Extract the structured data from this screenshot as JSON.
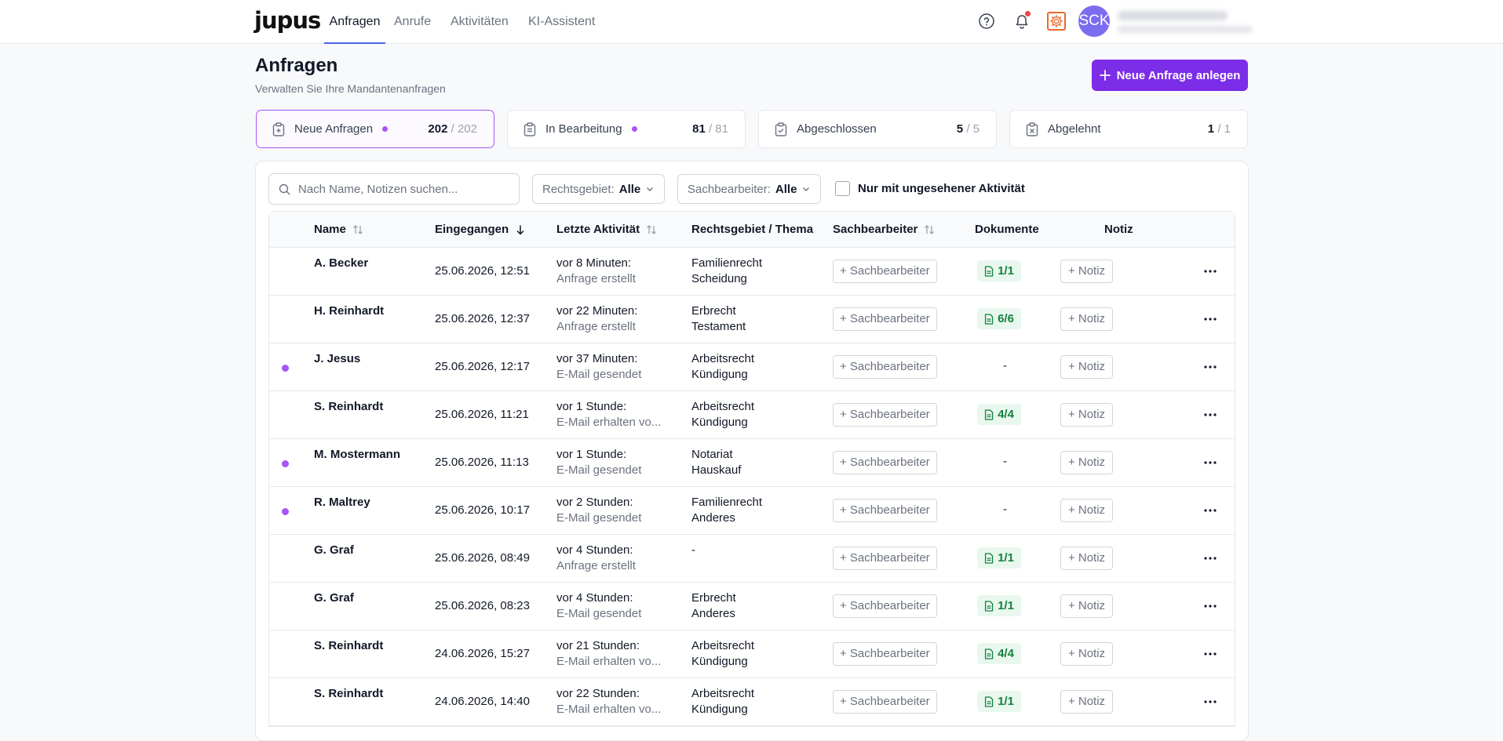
{
  "app": {
    "logo": "jupus"
  },
  "nav": [
    {
      "label": "Anfragen",
      "active": true
    },
    {
      "label": "Anrufe"
    },
    {
      "label": "Aktivitäten"
    },
    {
      "label": "KI-Assistent"
    }
  ],
  "user": {
    "initials": "SCK"
  },
  "colors": {
    "accent": "#7c2de8",
    "purple_dot": "#a855f7",
    "notification": "#ef4444",
    "doc_badge_bg": "#e9f8ef",
    "doc_badge_text": "#15803d"
  },
  "header": {
    "title": "Anfragen",
    "subtitle": "Verwalten Sie Ihre Mandantenanfragen",
    "new_button": "Neue Anfrage anlegen"
  },
  "stats": [
    {
      "label": "Neue Anfragen",
      "count": "202",
      "total": "/ 202",
      "dot": true,
      "active": true
    },
    {
      "label": "In Bearbeitung",
      "count": "81",
      "total": "/ 81",
      "dot": true
    },
    {
      "label": "Abgeschlossen",
      "count": "5",
      "total": "/ 5",
      "dot": false
    },
    {
      "label": "Abgelehnt",
      "count": "1",
      "total": "/ 1",
      "dot": false
    }
  ],
  "filters": {
    "search_placeholder": "Nach Name, Notizen suchen...",
    "rechtsgebiet_label": "Rechtsgebiet:",
    "rechtsgebiet_value": "Alle",
    "sachbearbeiter_label": "Sachbearbeiter:",
    "sachbearbeiter_value": "Alle",
    "unseen_label": "Nur mit ungesehener Aktivität"
  },
  "table": {
    "columns": {
      "name": "Name",
      "eingegangen": "Eingegangen",
      "letzte_aktivitaet": "Letzte Aktivität",
      "rechtsgebiet": "Rechtsgebiet / Thema",
      "sachbearbeiter": "Sachbearbeiter",
      "dokumente": "Dokumente",
      "notiz": "Notiz"
    },
    "sachbearbeiter_button": "+ Sachbearbeiter",
    "notiz_button": "+ Notiz",
    "rows": [
      {
        "name": "A. Becker",
        "date": "25.06.2026, 12:51",
        "act_time": "vor 8 Minuten:",
        "act_desc": "Anfrage erstellt",
        "area": "Familienrecht",
        "topic": "Scheidung",
        "docs": "1/1",
        "unread": false
      },
      {
        "name": "H. Reinhardt",
        "date": "25.06.2026, 12:37",
        "act_time": "vor 22 Minuten:",
        "act_desc": "Anfrage erstellt",
        "area": "Erbrecht",
        "topic": "Testament",
        "docs": "6/6",
        "unread": false
      },
      {
        "name": "J. Jesus",
        "date": "25.06.2026, 12:17",
        "act_time": "vor 37 Minuten:",
        "act_desc": "E-Mail gesendet",
        "area": "Arbeitsrecht",
        "topic": "Kündigung",
        "docs": "-",
        "unread": true
      },
      {
        "name": "S. Reinhardt",
        "date": "25.06.2026, 11:21",
        "act_time": "vor 1 Stunde:",
        "act_desc": "E-Mail erhalten vo...",
        "area": "Arbeitsrecht",
        "topic": "Kündigung",
        "docs": "4/4",
        "unread": false
      },
      {
        "name": "M. Mostermann",
        "date": "25.06.2026, 11:13",
        "act_time": "vor 1 Stunde:",
        "act_desc": "E-Mail gesendet",
        "area": "Notariat",
        "topic": "Hauskauf",
        "docs": "-",
        "unread": true
      },
      {
        "name": "R. Maltrey",
        "date": "25.06.2026, 10:17",
        "act_time": "vor 2 Stunden:",
        "act_desc": "E-Mail gesendet",
        "area": "Familienrecht",
        "topic": "Anderes",
        "docs": "-",
        "unread": true
      },
      {
        "name": "G. Graf",
        "date": "25.06.2026, 08:49",
        "act_time": "vor 4 Stunden:",
        "act_desc": "Anfrage erstellt",
        "area": "-",
        "topic": "",
        "docs": "1/1",
        "unread": false
      },
      {
        "name": "G. Graf",
        "date": "25.06.2026, 08:23",
        "act_time": "vor 4 Stunden:",
        "act_desc": "E-Mail gesendet",
        "area": "Erbrecht",
        "topic": "Anderes",
        "docs": "1/1",
        "unread": false
      },
      {
        "name": "S. Reinhardt",
        "date": "24.06.2026, 15:27",
        "act_time": "vor 21 Stunden:",
        "act_desc": "E-Mail erhalten vo...",
        "area": "Arbeitsrecht",
        "topic": "Kündigung",
        "docs": "4/4",
        "unread": false
      },
      {
        "name": "S. Reinhardt",
        "date": "24.06.2026, 14:40",
        "act_time": "vor 22 Stunden:",
        "act_desc": "E-Mail erhalten vo...",
        "area": "Arbeitsrecht",
        "topic": "Kündigung",
        "docs": "1/1",
        "unread": false
      }
    ]
  }
}
